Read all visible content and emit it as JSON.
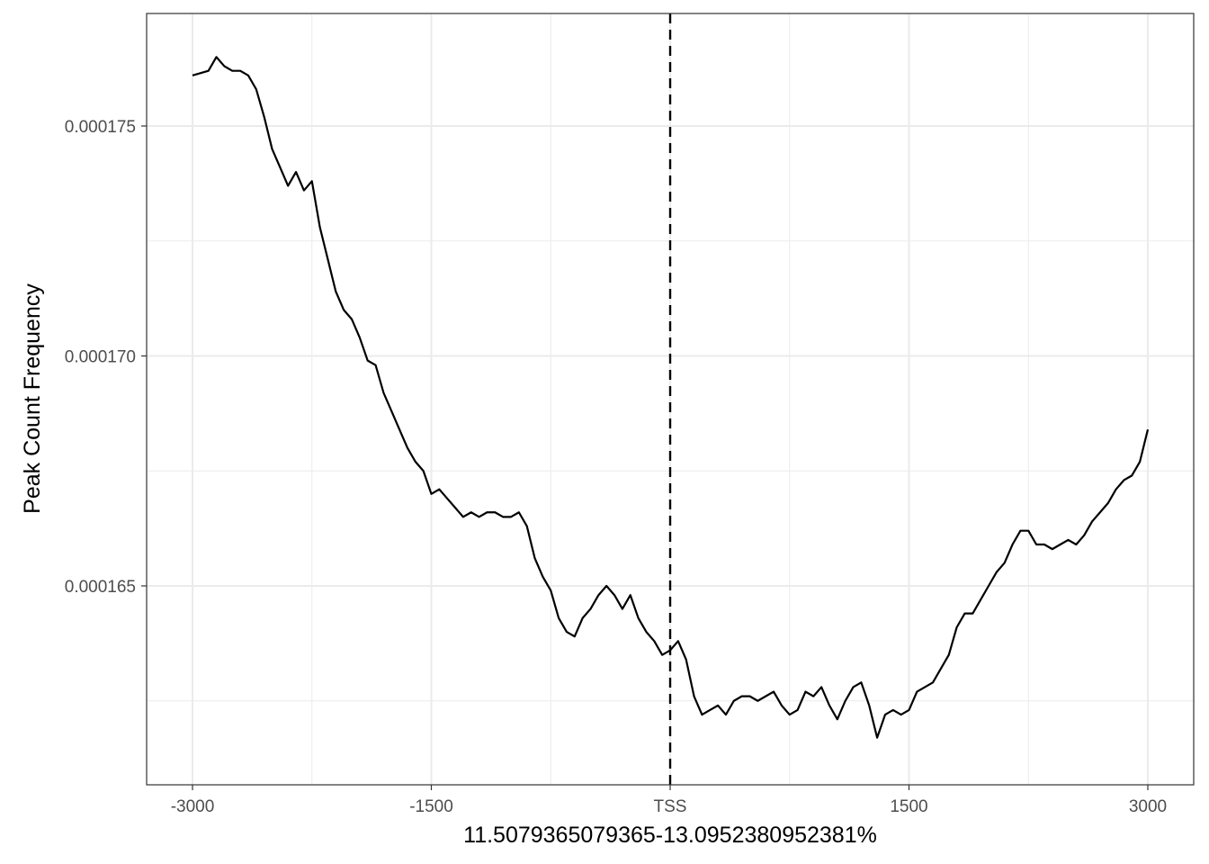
{
  "chart_data": {
    "type": "line",
    "title": "",
    "xlabel": "11.5079365079365-13.0952380952381%",
    "ylabel": "Peak Count Frequency",
    "xlim": [
      -3000,
      3000
    ],
    "ylim": [
      0.00016,
      0.000177
    ],
    "x_ticks": [
      -3000,
      -1500,
      0,
      1500,
      3000
    ],
    "x_tick_labels": [
      "-3000",
      "-1500",
      "TSS",
      "1500",
      "3000"
    ],
    "y_ticks": [
      0.000165,
      0.00017,
      0.000175
    ],
    "y_tick_labels": [
      "0.000165",
      "0.000170",
      "0.000175"
    ],
    "grid": true,
    "reference_line": {
      "x": 0,
      "style": "dashed"
    },
    "series": [
      {
        "color": "#000000",
        "x": [
          -3000,
          -2900,
          -2850,
          -2800,
          -2750,
          -2700,
          -2650,
          -2600,
          -2550,
          -2500,
          -2450,
          -2400,
          -2350,
          -2300,
          -2250,
          -2200,
          -2150,
          -2100,
          -2050,
          -2000,
          -1950,
          -1900,
          -1850,
          -1800,
          -1750,
          -1700,
          -1650,
          -1600,
          -1550,
          -1500,
          -1450,
          -1400,
          -1350,
          -1300,
          -1250,
          -1200,
          -1150,
          -1100,
          -1050,
          -1000,
          -950,
          -900,
          -850,
          -800,
          -750,
          -700,
          -650,
          -600,
          -550,
          -500,
          -450,
          -400,
          -350,
          -300,
          -250,
          -200,
          -150,
          -100,
          -50,
          0,
          50,
          100,
          150,
          200,
          250,
          300,
          350,
          400,
          450,
          500,
          550,
          600,
          650,
          700,
          750,
          800,
          850,
          900,
          950,
          1000,
          1050,
          1100,
          1150,
          1200,
          1250,
          1300,
          1350,
          1400,
          1450,
          1500,
          1550,
          1600,
          1650,
          1700,
          1750,
          1800,
          1850,
          1900,
          1950,
          2000,
          2050,
          2100,
          2150,
          2200,
          2250,
          2300,
          2350,
          2400,
          2450,
          2500,
          2550,
          2600,
          2650,
          2700,
          2750,
          2800,
          2850,
          2900,
          2950,
          3000
        ],
        "y": [
          0.0001761,
          0.0001762,
          0.0001765,
          0.0001763,
          0.0001762,
          0.0001762,
          0.0001761,
          0.0001758,
          0.0001752,
          0.0001745,
          0.0001741,
          0.0001737,
          0.000174,
          0.0001736,
          0.0001738,
          0.0001728,
          0.0001721,
          0.0001714,
          0.000171,
          0.0001708,
          0.0001704,
          0.0001699,
          0.0001698,
          0.0001692,
          0.0001688,
          0.0001684,
          0.000168,
          0.0001677,
          0.0001675,
          0.000167,
          0.0001671,
          0.0001669,
          0.0001667,
          0.0001665,
          0.0001666,
          0.0001665,
          0.0001666,
          0.0001666,
          0.0001665,
          0.0001665,
          0.0001666,
          0.0001663,
          0.0001656,
          0.0001652,
          0.0001649,
          0.0001643,
          0.000164,
          0.0001639,
          0.0001643,
          0.0001645,
          0.0001648,
          0.000165,
          0.0001648,
          0.0001645,
          0.0001648,
          0.0001643,
          0.000164,
          0.0001638,
          0.0001635,
          0.0001636,
          0.0001638,
          0.0001634,
          0.0001626,
          0.0001622,
          0.0001623,
          0.0001624,
          0.0001622,
          0.0001625,
          0.0001626,
          0.0001626,
          0.0001625,
          0.0001626,
          0.0001627,
          0.0001624,
          0.0001622,
          0.0001623,
          0.0001627,
          0.0001626,
          0.0001628,
          0.0001624,
          0.0001621,
          0.0001625,
          0.0001628,
          0.0001629,
          0.0001624,
          0.0001617,
          0.0001622,
          0.0001623,
          0.0001622,
          0.0001623,
          0.0001627,
          0.0001628,
          0.0001629,
          0.0001632,
          0.0001635,
          0.0001641,
          0.0001644,
          0.0001644,
          0.0001647,
          0.000165,
          0.0001653,
          0.0001655,
          0.0001659,
          0.0001662,
          0.0001662,
          0.0001659,
          0.0001659,
          0.0001658,
          0.0001659,
          0.000166,
          0.0001659,
          0.0001661,
          0.0001664,
          0.0001666,
          0.0001668,
          0.0001671,
          0.0001673,
          0.0001674,
          0.0001677,
          0.0001684
        ]
      }
    ]
  }
}
